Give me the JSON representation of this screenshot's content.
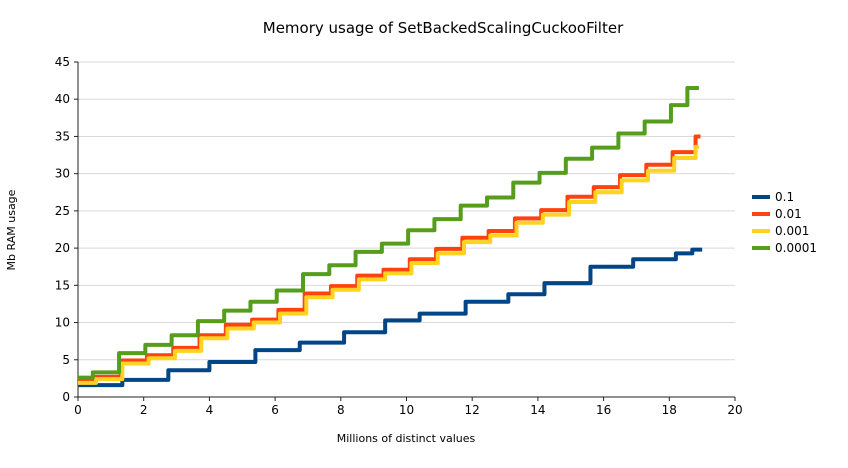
{
  "chart_data": {
    "type": "line",
    "subtype": "step",
    "title": "Memory usage of SetBackedScalingCuckooFilter",
    "xlabel": "Millions of distinct values",
    "ylabel": "Mb RAM usage",
    "xlim": [
      0,
      20
    ],
    "ylim": [
      0,
      45
    ],
    "x_tick_step": 2,
    "y_tick_step": 5,
    "grid": "horizontal",
    "grid_color": "#d9d9d9",
    "axis_color": "#222222",
    "legend_position": "right",
    "series": [
      {
        "name": "0.1",
        "color": "#004586",
        "x_end": 19.0,
        "x_breaks": [
          0,
          1.35,
          2.75,
          4.0,
          5.4,
          6.75,
          8.1,
          9.35,
          10.4,
          11.8,
          13.1,
          14.2,
          15.6,
          16.9,
          18.2,
          18.7
        ],
        "values": [
          1.6,
          2.3,
          3.6,
          4.7,
          6.3,
          7.3,
          8.7,
          10.3,
          11.2,
          12.8,
          13.8,
          15.3,
          17.5,
          18.5,
          19.3,
          19.8
        ]
      },
      {
        "name": "0.01",
        "color": "#ff420e",
        "x_end": 18.95,
        "x_breaks": [
          0,
          0.5,
          1.3,
          2.1,
          2.9,
          3.7,
          4.5,
          5.3,
          6.1,
          6.9,
          7.7,
          8.5,
          9.3,
          10.1,
          10.9,
          11.7,
          12.5,
          13.3,
          14.1,
          14.9,
          15.7,
          16.5,
          17.3,
          18.1,
          18.8
        ],
        "values": [
          2.2,
          2.7,
          4.9,
          5.6,
          6.6,
          8.3,
          9.7,
          10.4,
          11.7,
          13.9,
          14.9,
          16.3,
          17.1,
          18.5,
          19.9,
          21.4,
          22.3,
          24.0,
          25.1,
          26.9,
          28.2,
          29.8,
          31.2,
          32.9,
          35.0
        ]
      },
      {
        "name": "0.001",
        "color": "#ffd320",
        "x_end": 18.9,
        "x_breaks": [
          0,
          0.55,
          1.35,
          2.15,
          2.95,
          3.75,
          4.55,
          5.35,
          6.15,
          6.95,
          7.75,
          8.55,
          9.35,
          10.15,
          10.95,
          11.75,
          12.55,
          13.35,
          14.15,
          14.95,
          15.75,
          16.55,
          17.35,
          18.15,
          18.8
        ],
        "values": [
          1.9,
          2.4,
          4.5,
          5.2,
          6.2,
          7.9,
          9.2,
          10.0,
          11.2,
          13.4,
          14.4,
          15.8,
          16.6,
          18.0,
          19.3,
          20.8,
          21.7,
          23.4,
          24.5,
          26.2,
          27.5,
          29.1,
          30.4,
          32.1,
          33.6
        ]
      },
      {
        "name": "0.0001",
        "color": "#579d1c",
        "x_end": 18.9,
        "x_breaks": [
          0,
          0.45,
          1.25,
          2.05,
          2.85,
          3.65,
          4.45,
          5.25,
          6.05,
          6.85,
          7.65,
          8.45,
          9.25,
          10.05,
          10.85,
          11.65,
          12.45,
          13.25,
          14.05,
          14.85,
          15.65,
          16.45,
          17.25,
          18.05,
          18.55
        ],
        "values": [
          2.6,
          3.3,
          5.9,
          7.0,
          8.3,
          10.2,
          11.6,
          12.8,
          14.3,
          16.5,
          17.7,
          19.5,
          20.6,
          22.4,
          23.9,
          25.7,
          26.8,
          28.8,
          30.1,
          32.0,
          33.5,
          35.4,
          37.0,
          39.2,
          41.5
        ]
      }
    ]
  }
}
